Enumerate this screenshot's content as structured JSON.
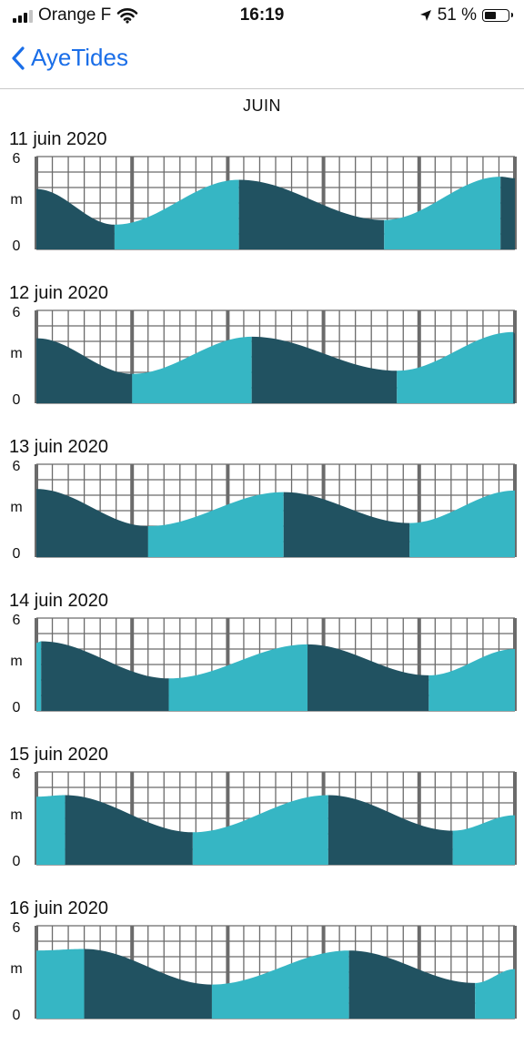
{
  "status_bar": {
    "carrier": "Orange F",
    "time": "16:19",
    "battery_percent": "51 %",
    "battery_level": 0.51,
    "signal_bars_filled": 3,
    "icons": [
      "signal-icon",
      "wifi-icon",
      "location-arrow-icon",
      "battery-icon"
    ]
  },
  "nav": {
    "back_label": "AyeTides",
    "back_icon": "chevron-left-icon"
  },
  "month_header": "JUIN",
  "colors": {
    "falling": "#215261",
    "rising": "#36b6c4",
    "grid": "#6b6b6b",
    "accent": "#1a6ee8"
  },
  "axis": {
    "max_label": "6",
    "unit_label": "m",
    "min_label": "0"
  },
  "days": [
    {
      "date": "11 juin 2020",
      "curve": [
        [
          0,
          3.9
        ],
        [
          4.9,
          1.6
        ],
        [
          12.7,
          4.5
        ],
        [
          21.8,
          1.9
        ],
        [
          29.1,
          4.7
        ],
        [
          30,
          4.6
        ]
      ],
      "first_phase": "falling"
    },
    {
      "date": "12 juin 2020",
      "curve": [
        [
          0,
          4.2
        ],
        [
          6,
          1.9
        ],
        [
          13.5,
          4.3
        ],
        [
          22.6,
          2.1
        ],
        [
          29.9,
          4.6
        ],
        [
          30,
          4.5
        ]
      ],
      "first_phase": "falling"
    },
    {
      "date": "13 juin 2020",
      "curve": [
        [
          0,
          4.4
        ],
        [
          7,
          2.0
        ],
        [
          15.5,
          4.2
        ],
        [
          23.4,
          2.2
        ],
        [
          30,
          4.3
        ]
      ],
      "first_phase": "falling"
    },
    {
      "date": "14 juin 2020",
      "curve": [
        [
          0,
          4.4
        ],
        [
          0.3,
          4.5
        ],
        [
          8.3,
          2.1
        ],
        [
          17,
          4.3
        ],
        [
          24.6,
          2.3
        ],
        [
          30,
          4.0
        ]
      ],
      "first_phase": "rising"
    },
    {
      "date": "15 juin 2020",
      "curve": [
        [
          0,
          4.4
        ],
        [
          1.8,
          4.5
        ],
        [
          9.8,
          2.1
        ],
        [
          18.3,
          4.5
        ],
        [
          26.1,
          2.2
        ],
        [
          30,
          3.2
        ]
      ],
      "first_phase": "rising"
    },
    {
      "date": "16 juin 2020",
      "curve": [
        [
          0,
          4.4
        ],
        [
          3,
          4.5
        ],
        [
          11,
          2.2
        ],
        [
          19.6,
          4.4
        ],
        [
          27.5,
          2.3
        ],
        [
          30,
          3.2
        ]
      ],
      "first_phase": "rising"
    }
  ]
}
